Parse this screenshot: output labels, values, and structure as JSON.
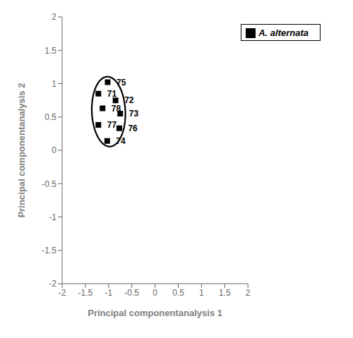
{
  "chart_data": {
    "type": "scatter",
    "xlabel": "Principal componentanalysis 1",
    "ylabel": "Principal componentanalysis 2",
    "series": [
      {
        "name": "A. alternata",
        "color": "black",
        "marker": "square",
        "points": [
          {
            "label": "75",
            "x": -1.02,
            "y": 1.02
          },
          {
            "label": "71",
            "x": -1.22,
            "y": 0.85
          },
          {
            "label": "72",
            "x": -0.85,
            "y": 0.75
          },
          {
            "label": "78",
            "x": -1.13,
            "y": 0.63
          },
          {
            "label": "73",
            "x": -0.75,
            "y": 0.55
          },
          {
            "label": "77",
            "x": -1.22,
            "y": 0.38
          },
          {
            "label": "76",
            "x": -0.77,
            "y": 0.33
          },
          {
            "label": "74",
            "x": -1.03,
            "y": 0.14
          }
        ]
      }
    ],
    "ellipse": {
      "center_x": -1.0,
      "center_y": 0.58,
      "width": 0.72,
      "height": 1.05,
      "angle": 5,
      "color": "#000000"
    },
    "xlim": [
      -2.0,
      2.0
    ],
    "ylim": [
      -2.0,
      2.0
    ],
    "xticks": [
      -2,
      -1.5,
      -1,
      -0.5,
      0,
      0.5,
      1,
      1.5,
      2
    ],
    "yticks": [
      -2,
      -1.5,
      -1,
      -0.5,
      0,
      0.5,
      1,
      1.5,
      2
    ],
    "legend": "upper right",
    "grid": false
  }
}
